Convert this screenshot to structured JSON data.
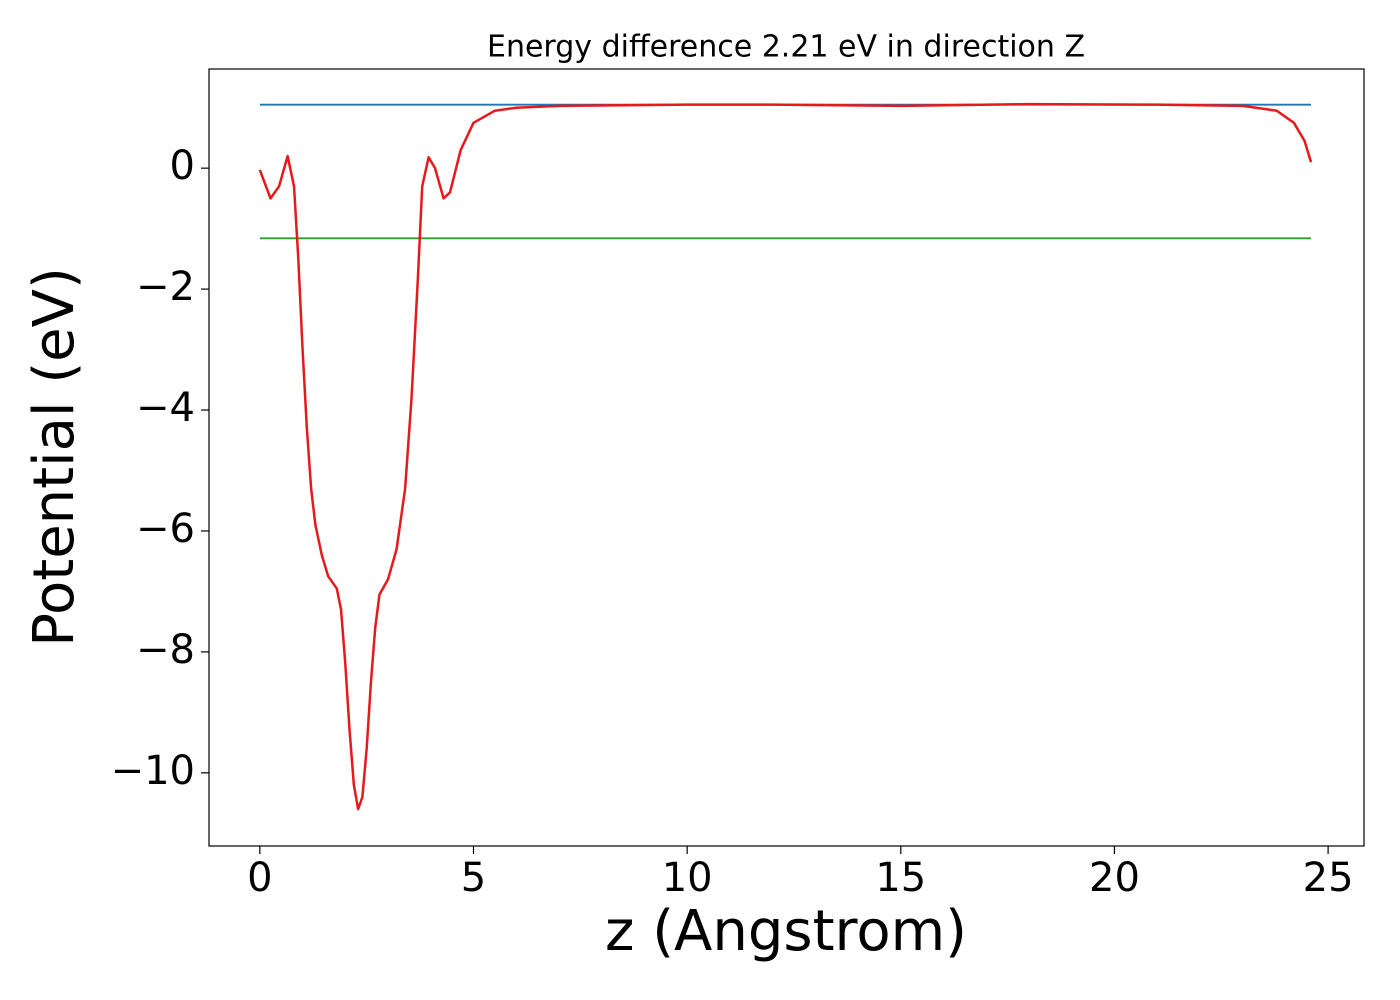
{
  "chart_data": {
    "type": "line",
    "title": "Energy difference 2.21 eV in direction Z",
    "xlabel": "z (Angstrom)",
    "ylabel": "Potential (eV)",
    "xlim": [
      -1.19,
      25.84
    ],
    "ylim": [
      -11.21,
      1.64
    ],
    "xticks": [
      0,
      5,
      10,
      15,
      20,
      25
    ],
    "yticks": [
      0,
      {
        "value": -2,
        "label": "−2"
      },
      {
        "value": -4,
        "label": "−4"
      },
      {
        "value": -6,
        "label": "−6"
      },
      {
        "value": -8,
        "label": "−8"
      },
      {
        "value": -10,
        "label": "−10"
      }
    ],
    "series": [
      {
        "color": "#1f77b4",
        "x": [
          0,
          24.6
        ],
        "values": [
          1.05,
          1.05
        ]
      },
      {
        "color": "#2ca02c",
        "x": [
          0,
          24.6
        ],
        "values": [
          -1.16,
          -1.16
        ]
      },
      {
        "color": "#e41a1c",
        "x": [
          0,
          0.25,
          0.45,
          0.65,
          0.8,
          0.9,
          1.0,
          1.1,
          1.2,
          1.3,
          1.45,
          1.6,
          1.8,
          1.9,
          2.0,
          2.1,
          2.2,
          2.3,
          2.4,
          2.5,
          2.6,
          2.7,
          2.8,
          3.0,
          3.2,
          3.4,
          3.55,
          3.7,
          3.8,
          3.95,
          4.1,
          4.3,
          4.45,
          4.7,
          5.0,
          5.5,
          6.0,
          7.0,
          10,
          12,
          15,
          18,
          21,
          23,
          23.8,
          24.2,
          24.45,
          24.6
        ],
        "values": [
          -0.03,
          -0.5,
          -0.3,
          0.2,
          -0.3,
          -1.5,
          -3.0,
          -4.3,
          -5.3,
          -5.9,
          -6.4,
          -6.75,
          -6.95,
          -7.3,
          -8.2,
          -9.3,
          -10.2,
          -10.6,
          -10.4,
          -9.6,
          -8.5,
          -7.6,
          -7.05,
          -6.8,
          -6.3,
          -5.3,
          -3.8,
          -1.8,
          -0.3,
          0.18,
          0.0,
          -0.5,
          -0.4,
          0.3,
          0.75,
          0.95,
          1.0,
          1.03,
          1.05,
          1.05,
          1.03,
          1.06,
          1.05,
          1.03,
          0.95,
          0.75,
          0.45,
          0.1
        ]
      }
    ]
  }
}
